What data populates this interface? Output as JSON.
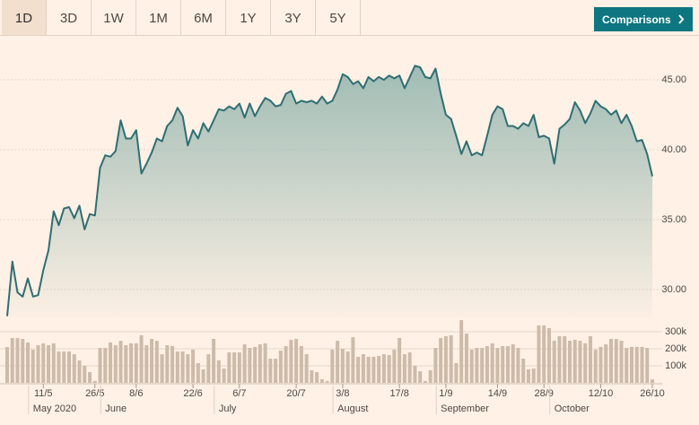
{
  "toolbar": {
    "ranges": [
      "1D",
      "3D",
      "1W",
      "1M",
      "6M",
      "1Y",
      "3Y",
      "5Y"
    ],
    "comparisons": "Comparisons"
  },
  "chart_data": [
    {
      "type": "area",
      "color": "#2f6e73",
      "grid": true,
      "ylim": [
        28,
        46.5
      ],
      "yticks": [
        {
          "value": 30,
          "label": "30.00"
        },
        {
          "value": 35,
          "label": "35.00"
        },
        {
          "value": 40,
          "label": "40.00"
        },
        {
          "value": 45,
          "label": "45.00"
        }
      ],
      "categories": [
        null,
        null,
        null,
        null,
        null,
        null,
        null,
        "11/5",
        null,
        null,
        null,
        null,
        null,
        null,
        null,
        null,
        null,
        "26/5",
        null,
        null,
        null,
        null,
        null,
        null,
        null,
        "8/6",
        null,
        null,
        null,
        null,
        null,
        null,
        null,
        null,
        null,
        null,
        "22/6",
        null,
        null,
        null,
        null,
        null,
        null,
        null,
        null,
        "6/7",
        null,
        null,
        null,
        null,
        null,
        null,
        null,
        null,
        null,
        null,
        "20/7",
        null,
        null,
        null,
        null,
        null,
        null,
        null,
        null,
        "3/8",
        null,
        null,
        null,
        null,
        null,
        null,
        null,
        null,
        null,
        null,
        "17/8",
        null,
        null,
        null,
        null,
        null,
        null,
        null,
        null,
        "1/9",
        null,
        null,
        null,
        null,
        null,
        null,
        null,
        null,
        null,
        "14/9",
        null,
        null,
        null,
        null,
        null,
        null,
        null,
        null,
        "28/9",
        null,
        null,
        null,
        null,
        null,
        null,
        null,
        null,
        null,
        null,
        "12/10",
        null,
        null,
        null,
        null,
        null,
        null,
        null,
        null,
        null,
        "26/10"
      ],
      "month_ticks": [
        {
          "value": 5,
          "label": "May 2020"
        },
        {
          "value": 19,
          "label": "June"
        },
        {
          "value": 41,
          "label": "July"
        },
        {
          "value": 64,
          "label": "August"
        },
        {
          "value": 84,
          "label": "September"
        },
        {
          "value": 106,
          "label": "October"
        }
      ],
      "values": [
        28.1,
        32.0,
        29.8,
        29.5,
        30.8,
        29.5,
        29.6,
        31.4,
        32.8,
        35.6,
        34.6,
        35.8,
        35.9,
        35.1,
        36.0,
        34.3,
        35.4,
        35.3,
        38.7,
        39.6,
        39.5,
        39.9,
        42.1,
        40.8,
        40.8,
        41.4,
        38.3,
        39.0,
        39.8,
        40.8,
        40.6,
        41.7,
        42.1,
        43.0,
        42.4,
        40.3,
        41.4,
        40.8,
        41.9,
        41.3,
        42.1,
        42.9,
        42.8,
        43.1,
        42.9,
        43.3,
        42.3,
        43.3,
        42.4,
        43.1,
        43.7,
        43.5,
        43.1,
        43.2,
        44.0,
        44.2,
        43.3,
        43.5,
        43.4,
        43.5,
        43.3,
        43.8,
        43.3,
        43.5,
        44.3,
        45.4,
        45.2,
        44.7,
        44.9,
        44.4,
        45.2,
        44.9,
        45.2,
        45.0,
        45.3,
        45.1,
        45.3,
        44.4,
        45.2,
        46.0,
        45.9,
        45.2,
        45.1,
        45.8,
        44.0,
        42.5,
        42.2,
        41.0,
        39.7,
        40.6,
        39.6,
        39.8,
        39.6,
        41.0,
        42.5,
        43.1,
        42.9,
        41.7,
        41.7,
        41.5,
        41.9,
        41.7,
        42.5,
        40.9,
        41.0,
        40.8,
        39.0,
        41.5,
        41.8,
        42.2,
        43.4,
        42.8,
        41.9,
        42.6,
        43.5,
        43.1,
        42.9,
        42.5,
        42.8,
        41.9,
        42.5,
        41.7,
        40.6,
        40.7,
        39.7,
        38.1
      ]
    },
    {
      "type": "bar",
      "color": "#cdbbaa",
      "grid": true,
      "ylim": [
        0,
        350000
      ],
      "yticks": [
        {
          "value": 100000,
          "label": "100k"
        },
        {
          "value": 200000,
          "label": "200k"
        },
        {
          "value": 300000,
          "label": "300k"
        }
      ],
      "values": [
        210000,
        263000,
        263000,
        258000,
        237000,
        195000,
        221000,
        232000,
        221000,
        232000,
        184000,
        184000,
        184000,
        168000,
        132000,
        100000,
        63000,
        11000,
        205000,
        205000,
        237000,
        221000,
        247000,
        221000,
        232000,
        232000,
        279000,
        221000,
        258000,
        247000,
        168000,
        221000,
        216000,
        184000,
        184000,
        168000,
        195000,
        116000,
        79000,
        168000,
        258000,
        132000,
        84000,
        179000,
        179000,
        179000,
        226000,
        205000,
        211000,
        226000,
        232000,
        142000,
        142000,
        189000,
        216000,
        253000,
        258000,
        216000,
        168000,
        74000,
        63000,
        21000,
        11000,
        195000,
        247000,
        200000,
        184000,
        268000,
        153000,
        168000,
        153000,
        153000,
        158000,
        168000,
        163000,
        195000,
        263000,
        168000,
        179000,
        100000,
        68000,
        11000,
        74000,
        205000,
        263000,
        274000,
        279000,
        116000,
        368000,
        289000,
        195000,
        205000,
        205000,
        216000,
        232000,
        205000,
        216000,
        216000,
        226000,
        205000,
        142000,
        79000,
        84000,
        337000,
        337000,
        321000,
        247000,
        274000,
        274000,
        247000,
        253000,
        247000,
        232000,
        274000,
        195000,
        211000,
        226000,
        258000,
        258000,
        247000,
        205000,
        211000,
        211000,
        211000,
        205000,
        20000
      ]
    }
  ]
}
